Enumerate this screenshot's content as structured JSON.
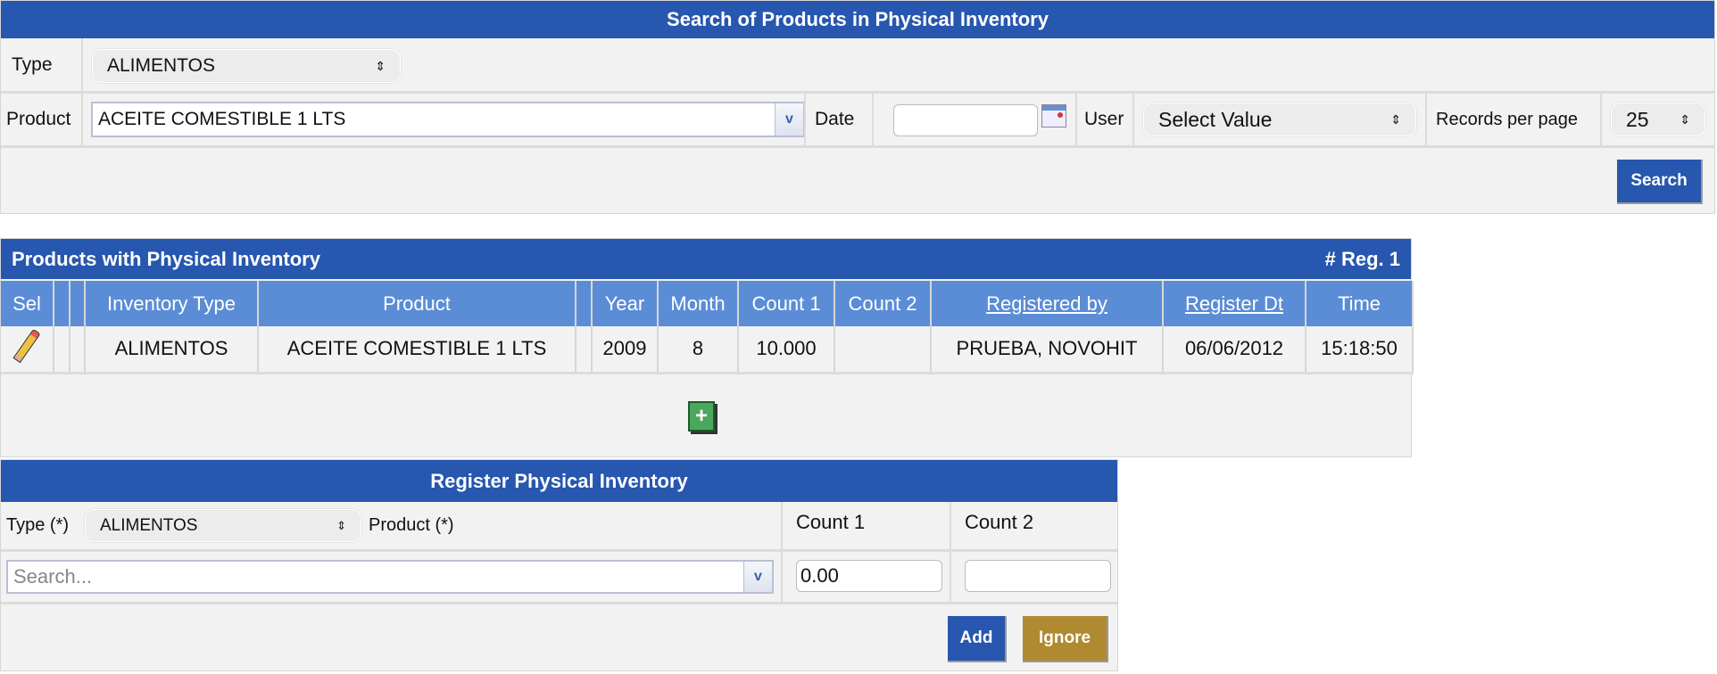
{
  "search_panel": {
    "title": "Search of Products in Physical Inventory",
    "type_label": "Type",
    "type_value": "ALIMENTOS",
    "product_label": "Product",
    "product_value": "ACEITE COMESTIBLE 1 LTS",
    "date_label": "Date",
    "date_value": "",
    "user_label": "User",
    "user_value": "Select Value",
    "records_label": "Records per page",
    "records_value": "25",
    "search_button": "Search"
  },
  "results": {
    "title": "Products with Physical Inventory",
    "count": "# Reg. 1",
    "columns": [
      "Sel",
      "",
      "",
      "Inventory Type",
      "Product",
      "",
      "Year",
      "Month",
      "Count 1",
      "Count 2",
      "Registered by",
      "Register Dt",
      "Time"
    ],
    "rows": [
      {
        "type": "ALIMENTOS",
        "product": "ACEITE COMESTIBLE 1 LTS",
        "year": "2009",
        "month": "8",
        "count1": "10.000",
        "count2": "",
        "registered_by": "PRUEBA, NOVOHIT",
        "register_dt": "06/06/2012",
        "time": "15:18:50"
      }
    ]
  },
  "register": {
    "title": "Register Physical Inventory",
    "type_label": "Type (*)",
    "type_value": "ALIMENTOS",
    "product_label": "Product (*)",
    "count1_label": "Count 1",
    "count2_label": "Count 2",
    "search_placeholder": "Search...",
    "count1_value": "0.00",
    "count2_value": "",
    "add_button": "Add",
    "ignore_button": "Ignore"
  },
  "colors": {
    "bar": "#2757ae",
    "header": "#5b8dd6",
    "add": "#2757ae",
    "ignore": "#b08a30"
  }
}
